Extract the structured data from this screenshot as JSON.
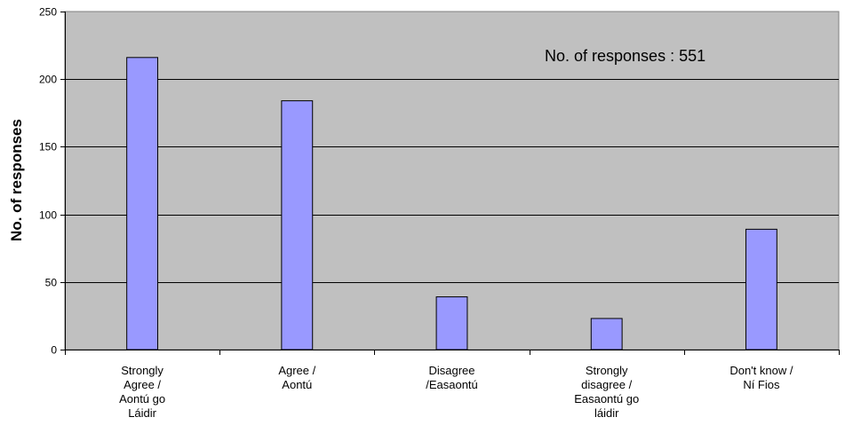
{
  "chart_data": {
    "type": "bar",
    "categories": [
      [
        "Strongly",
        "Agree /",
        "Aontú go",
        "Láidir"
      ],
      [
        "Agree /",
        "Aontú"
      ],
      [
        "Disagree",
        "/Easaontú"
      ],
      [
        "Strongly",
        "disagree /",
        "Easaontú go",
        "láidir"
      ],
      [
        "Don't know /",
        "Ní Fios"
      ]
    ],
    "values": [
      216,
      184,
      39,
      23,
      89
    ],
    "ylabel": "No. of responses",
    "xlabel": "",
    "ylim": [
      0,
      250
    ],
    "yticks": [
      "0",
      "50",
      "100",
      "150",
      "200",
      "250"
    ],
    "grid": true,
    "annotation": "No. of responses : 551",
    "colors": {
      "plot_background": "#c0c0c0",
      "bar_fill": "#9999ff",
      "bar_stroke": "#000000",
      "grid": "#000000"
    }
  }
}
